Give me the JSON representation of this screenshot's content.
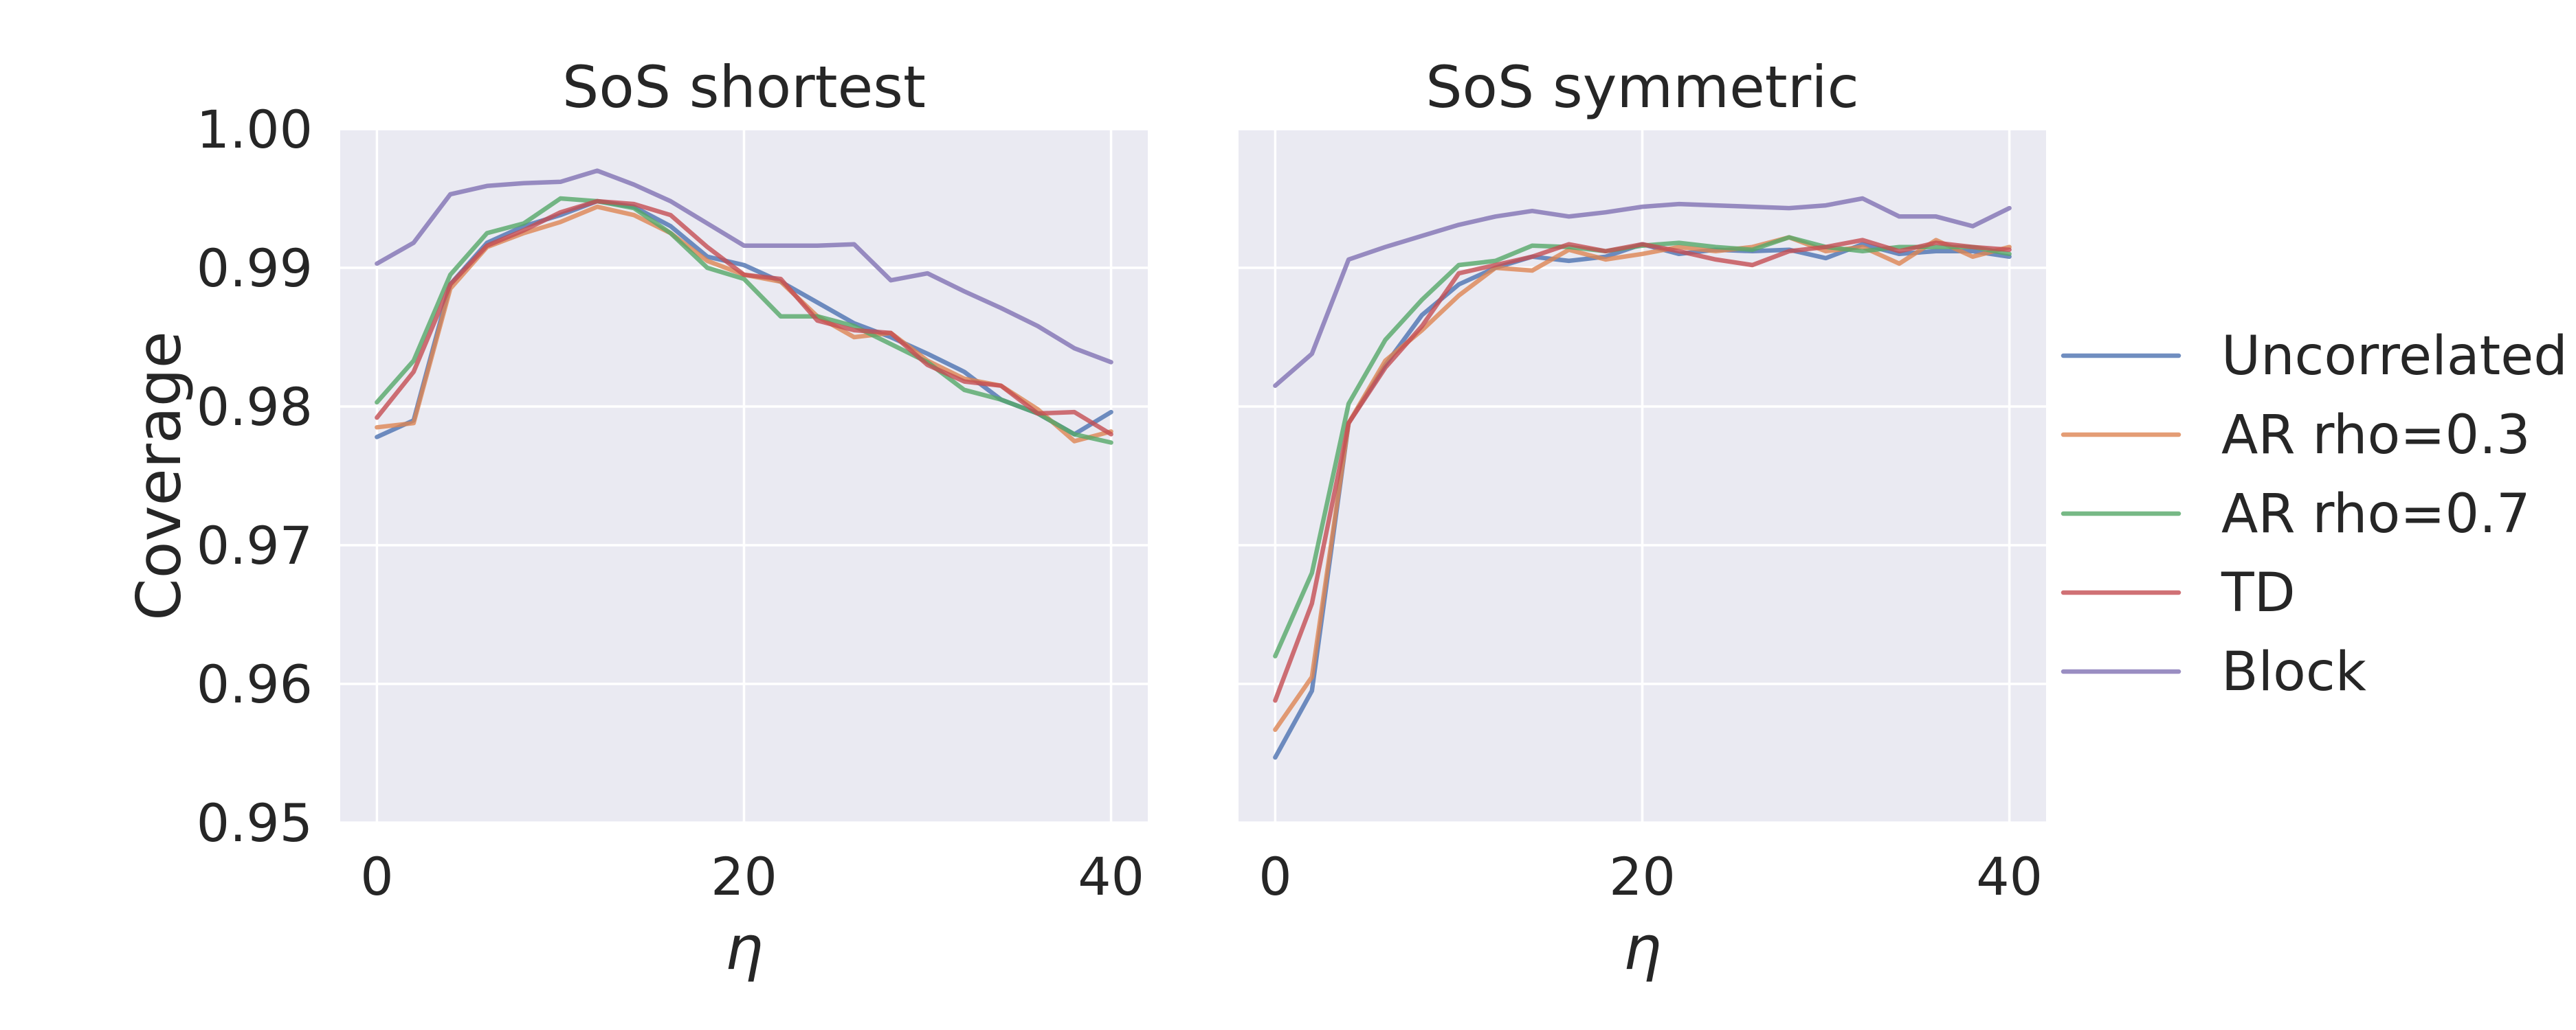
{
  "chart_data": [
    {
      "type": "line",
      "title": "SoS shortest",
      "xlabel": "η",
      "ylabel": "Coverage",
      "xlim": [
        -2,
        42
      ],
      "ylim": [
        0.95,
        1.0
      ],
      "xticks": [
        0,
        20,
        40
      ],
      "xtick_labels": [
        "0",
        "20",
        "40"
      ],
      "yticks": [
        0.95,
        0.96,
        0.97,
        0.98,
        0.99,
        1.0
      ],
      "ytick_labels": [
        "0.95",
        "0.96",
        "0.97",
        "0.98",
        "0.99",
        "1.00"
      ],
      "grid": true,
      "x": [
        0,
        2,
        4,
        6,
        8,
        10,
        12,
        14,
        16,
        18,
        20,
        22,
        24,
        26,
        28,
        30,
        32,
        34,
        36,
        38,
        40
      ],
      "series": [
        {
          "name": "Uncorrelated",
          "color": "#4c72b0",
          "values": [
            0.9778,
            0.979,
            0.9888,
            0.9918,
            0.993,
            0.9938,
            0.9948,
            0.9944,
            0.993,
            0.9908,
            0.9902,
            0.989,
            0.9875,
            0.986,
            0.985,
            0.9838,
            0.9825,
            0.9805,
            0.9795,
            0.978,
            0.9796
          ]
        },
        {
          "name": "AR rho=0.3",
          "color": "#dd8452",
          "values": [
            0.9785,
            0.9788,
            0.9885,
            0.9915,
            0.9925,
            0.9933,
            0.9944,
            0.9938,
            0.9925,
            0.9905,
            0.9895,
            0.989,
            0.9865,
            0.985,
            0.9853,
            0.9833,
            0.982,
            0.9815,
            0.9798,
            0.9775,
            0.9782
          ]
        },
        {
          "name": "AR rho=0.7",
          "color": "#55a868",
          "values": [
            0.9803,
            0.9833,
            0.9895,
            0.9925,
            0.9932,
            0.995,
            0.9948,
            0.9943,
            0.9925,
            0.99,
            0.9892,
            0.9865,
            0.9865,
            0.9858,
            0.9845,
            0.9832,
            0.9812,
            0.9805,
            0.9795,
            0.978,
            0.9774
          ]
        },
        {
          "name": "TD",
          "color": "#c44e52",
          "values": [
            0.9792,
            0.9825,
            0.9888,
            0.9916,
            0.9927,
            0.994,
            0.9948,
            0.9946,
            0.9938,
            0.9915,
            0.9895,
            0.9892,
            0.9862,
            0.9855,
            0.9853,
            0.983,
            0.9818,
            0.9815,
            0.9795,
            0.9796,
            0.978
          ]
        },
        {
          "name": "Block",
          "color": "#8172b3",
          "values": [
            0.9903,
            0.9918,
            0.9953,
            0.9959,
            0.9961,
            0.9962,
            0.997,
            0.996,
            0.9948,
            0.9932,
            0.9916,
            0.9916,
            0.9916,
            0.9917,
            0.9891,
            0.9896,
            0.9883,
            0.9871,
            0.9858,
            0.9842,
            0.9832
          ]
        }
      ]
    },
    {
      "type": "line",
      "title": "SoS symmetric",
      "xlabel": "η",
      "ylabel": "",
      "xlim": [
        -2,
        42
      ],
      "ylim": [
        0.95,
        1.0
      ],
      "xticks": [
        0,
        20,
        40
      ],
      "xtick_labels": [
        "0",
        "20",
        "40"
      ],
      "yticks": [
        0.95,
        0.96,
        0.97,
        0.98,
        0.99,
        1.0
      ],
      "ytick_labels": [],
      "grid": true,
      "x": [
        0,
        2,
        4,
        6,
        8,
        10,
        12,
        14,
        16,
        18,
        20,
        22,
        24,
        26,
        28,
        30,
        32,
        34,
        36,
        38,
        40
      ],
      "series": [
        {
          "name": "Uncorrelated",
          "color": "#4c72b0",
          "values": [
            0.9547,
            0.9595,
            0.9788,
            0.983,
            0.9866,
            0.9888,
            0.99,
            0.9908,
            0.9905,
            0.9908,
            0.9917,
            0.991,
            0.9913,
            0.9912,
            0.9913,
            0.9907,
            0.9917,
            0.991,
            0.9912,
            0.9912,
            0.9908
          ]
        },
        {
          "name": "AR rho=0.3",
          "color": "#dd8452",
          "values": [
            0.9567,
            0.9605,
            0.9788,
            0.9833,
            0.9855,
            0.988,
            0.99,
            0.9898,
            0.9913,
            0.9906,
            0.991,
            0.9915,
            0.9912,
            0.9915,
            0.9922,
            0.9912,
            0.9915,
            0.9903,
            0.992,
            0.9908,
            0.9915
          ]
        },
        {
          "name": "AR rho=0.7",
          "color": "#55a868",
          "values": [
            0.962,
            0.968,
            0.9802,
            0.9848,
            0.9877,
            0.9902,
            0.9905,
            0.9916,
            0.9915,
            0.9912,
            0.9916,
            0.9918,
            0.9915,
            0.9913,
            0.9922,
            0.9915,
            0.9912,
            0.9915,
            0.9915,
            0.9915,
            0.991
          ]
        },
        {
          "name": "TD",
          "color": "#c44e52",
          "values": [
            0.9588,
            0.9658,
            0.9788,
            0.9828,
            0.9858,
            0.9896,
            0.9902,
            0.9908,
            0.9917,
            0.9912,
            0.9917,
            0.9912,
            0.9906,
            0.9902,
            0.9912,
            0.9915,
            0.992,
            0.9912,
            0.9918,
            0.9915,
            0.9913
          ]
        },
        {
          "name": "Block",
          "color": "#8172b3",
          "values": [
            0.9815,
            0.9838,
            0.9906,
            0.9915,
            0.9923,
            0.9931,
            0.9937,
            0.9941,
            0.9937,
            0.994,
            0.9944,
            0.9946,
            0.9945,
            0.9944,
            0.9943,
            0.9945,
            0.995,
            0.9937,
            0.9937,
            0.993,
            0.9943
          ]
        }
      ]
    }
  ],
  "legend": {
    "placement": "right",
    "entries": [
      "Uncorrelated",
      "AR rho=0.3",
      "AR rho=0.7",
      "TD",
      "Block"
    ]
  }
}
